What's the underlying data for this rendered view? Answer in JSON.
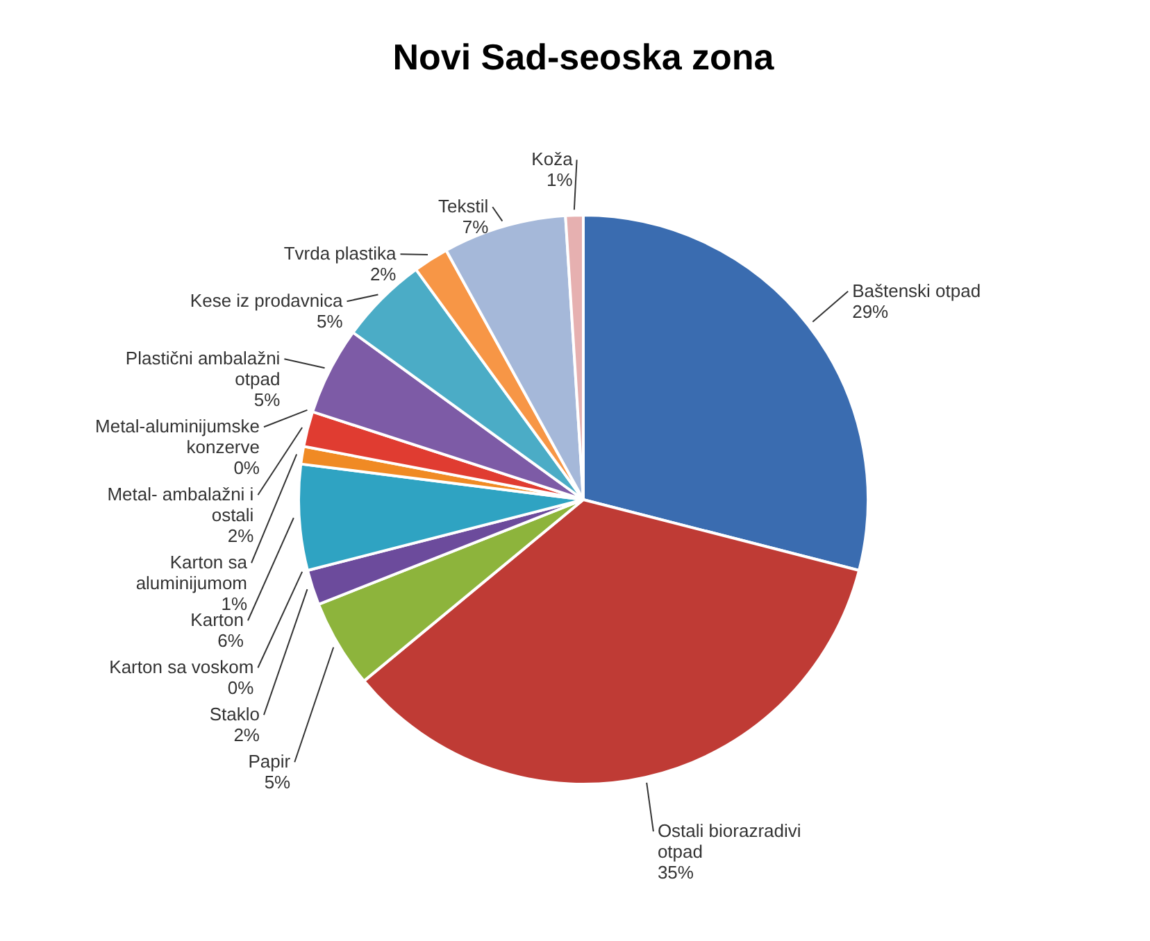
{
  "chart_data": {
    "type": "pie",
    "title": "Novi Sad-seoska zona",
    "categories": [
      "Baštenski otpad",
      "Ostali biorazradivi otpad",
      "Papir",
      "Staklo",
      "Karton sa voskom",
      "Karton",
      "Karton sa aluminijumom",
      "Metal- ambalažni i ostali",
      "Metal-aluminijumske konzerve",
      "Plastični ambalažni otpad",
      "Kese iz prodavnica",
      "Tvrda plastika",
      "Tekstil",
      "Koža"
    ],
    "values": [
      29,
      35,
      5,
      2,
      0,
      6,
      1,
      2,
      0,
      5,
      5,
      2,
      7,
      1
    ],
    "value_labels": [
      "29%",
      "35%",
      "5%",
      "2%",
      "0%",
      "6%",
      "1%",
      "2%",
      "0%",
      "5%",
      "5%",
      "2%",
      "7%",
      "1%"
    ],
    "colors": [
      "#3a6cb0",
      "#bf3b35",
      "#8db43c",
      "#6c4b9c",
      "#2fa3c2",
      "#2fa3c2",
      "#f08a24",
      "#e03c31",
      "#9bbb59",
      "#7d5ba6",
      "#4bacc6",
      "#f79646",
      "#a5b8d9",
      "#e6b0b0"
    ]
  }
}
